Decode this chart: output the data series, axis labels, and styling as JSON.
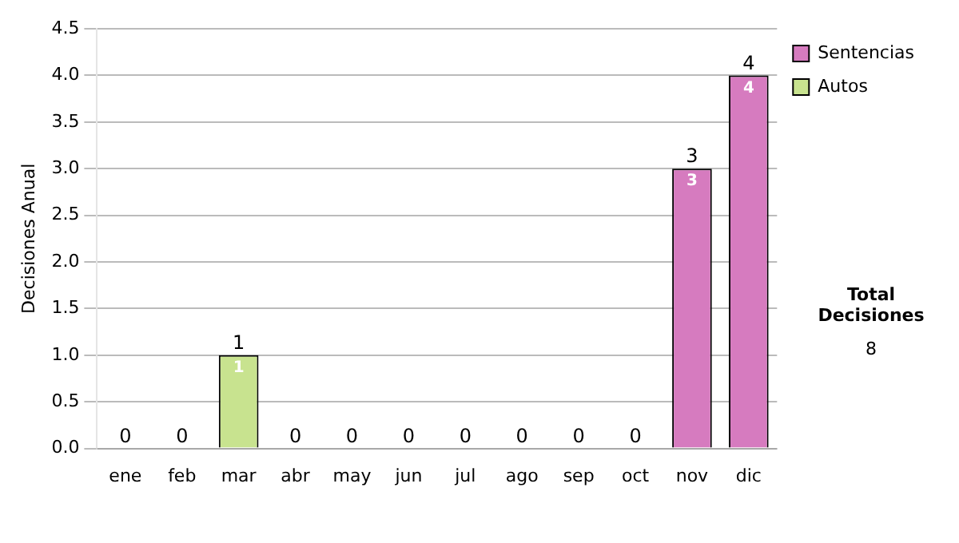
{
  "chart_data": {
    "type": "bar",
    "ylabel": "Decisiones Anual",
    "categories": [
      "ene",
      "feb",
      "mar",
      "abr",
      "may",
      "jun",
      "jul",
      "ago",
      "sep",
      "oct",
      "nov",
      "dic"
    ],
    "series": [
      {
        "name": "Sentencias",
        "color": "#d67bbf",
        "values": [
          0,
          0,
          0,
          0,
          0,
          0,
          0,
          0,
          0,
          0,
          3,
          4
        ],
        "value_labels": [
          null,
          null,
          null,
          null,
          null,
          null,
          null,
          null,
          null,
          null,
          "3",
          "4"
        ]
      },
      {
        "name": "Autos",
        "color": "#c8e38f",
        "values": [
          0,
          0,
          1,
          0,
          0,
          0,
          0,
          0,
          0,
          0,
          0,
          0
        ],
        "value_labels": [
          null,
          null,
          "1",
          null,
          null,
          null,
          null,
          null,
          null,
          null,
          null,
          null
        ]
      }
    ],
    "stacked": true,
    "totals": [
      "0",
      "0",
      "1",
      "0",
      "0",
      "0",
      "0",
      "0",
      "0",
      "0",
      "3",
      "4"
    ],
    "ylim": [
      0,
      4.5
    ],
    "yticks": [
      {
        "value": 0,
        "label": "0.0"
      },
      {
        "value": 0.5,
        "label": "0.5"
      },
      {
        "value": 1,
        "label": "1.0"
      },
      {
        "value": 1.5,
        "label": "1.5"
      },
      {
        "value": 2,
        "label": "2.0"
      },
      {
        "value": 2.5,
        "label": "2.5"
      },
      {
        "value": 3,
        "label": "3.0"
      },
      {
        "value": 3.5,
        "label": "3.5"
      },
      {
        "value": 4,
        "label": "4.0"
      },
      {
        "value": 4.5,
        "label": "4.5"
      }
    ],
    "grid": "y",
    "legend": "right",
    "annotations": [
      "Total Decisiones",
      "8"
    ]
  }
}
